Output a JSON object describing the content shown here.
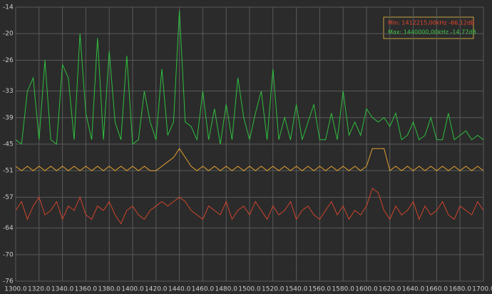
{
  "chart_data": {
    "type": "line",
    "annotations": [
      "Min: 1412215,00kHz -66,12dB",
      "Max: 1440000,00kHz -14,77dB"
    ],
    "annotation_colors": [
      "#e0452f",
      "#3ec54a"
    ],
    "x": [
      1300,
      1305,
      1310,
      1315,
      1320,
      1325,
      1330,
      1335,
      1340,
      1345,
      1350,
      1355,
      1360,
      1365,
      1370,
      1375,
      1380,
      1385,
      1390,
      1395,
      1400,
      1405,
      1410,
      1415,
      1420,
      1425,
      1430,
      1435,
      1440,
      1445,
      1450,
      1455,
      1460,
      1465,
      1470,
      1475,
      1480,
      1485,
      1490,
      1495,
      1500,
      1505,
      1510,
      1515,
      1520,
      1525,
      1530,
      1535,
      1540,
      1545,
      1550,
      1555,
      1560,
      1565,
      1570,
      1575,
      1580,
      1585,
      1590,
      1595,
      1600,
      1605,
      1610,
      1615,
      1620,
      1625,
      1630,
      1635,
      1640,
      1645,
      1650,
      1655,
      1660,
      1665,
      1670,
      1675,
      1680,
      1685,
      1690,
      1695,
      1700
    ],
    "series": [
      {
        "color": "#2fbf3f",
        "values": [
          -44,
          -45,
          -33,
          -30,
          -44,
          -26,
          -44,
          -45,
          -27,
          -30,
          -44,
          -20,
          -38,
          -44,
          -21,
          -44,
          -24,
          -40,
          -44,
          -25,
          -45,
          -44,
          -33,
          -40,
          -44,
          -28,
          -43,
          -40,
          -14.77,
          -40,
          -41,
          -44,
          -33,
          -44,
          -37,
          -45,
          -36,
          -44,
          -30,
          -39,
          -44,
          -38,
          -33,
          -44,
          -28,
          -44,
          -39,
          -44,
          -36,
          -44,
          -40,
          -36,
          -44,
          -44,
          -38,
          -44,
          -33,
          -43,
          -40,
          -43,
          -37,
          -39,
          -40,
          -39,
          -41,
          -38,
          -44,
          -43,
          -40,
          -44,
          -43,
          -39,
          -44,
          -44,
          -38,
          -44,
          -43,
          -42,
          -44,
          -43,
          -44
        ]
      },
      {
        "color": "#e0a030",
        "values": [
          -50,
          -51,
          -50,
          -51,
          -50,
          -51,
          -50,
          -51,
          -50,
          -51,
          -50,
          -51,
          -50,
          -51,
          -50,
          -51,
          -50,
          -51,
          -50,
          -51,
          -50,
          -51,
          -50,
          -51,
          -51,
          -50,
          -49,
          -48,
          -46,
          -48,
          -50,
          -51,
          -50,
          -51,
          -50,
          -51,
          -50,
          -51,
          -50,
          -51,
          -50,
          -51,
          -50,
          -51,
          -50,
          -51,
          -50,
          -51,
          -50,
          -51,
          -50,
          -51,
          -50,
          -51,
          -50,
          -51,
          -50,
          -51,
          -50,
          -51,
          -50,
          -46,
          -46,
          -46,
          -51,
          -50,
          -51,
          -50,
          -51,
          -50,
          -51,
          -50,
          -51,
          -50,
          -51,
          -50,
          -51,
          -50,
          -51,
          -50,
          -51
        ]
      },
      {
        "color": "#d0442c",
        "values": [
          -60,
          -58,
          -62,
          -59,
          -57,
          -61,
          -60,
          -58,
          -62,
          -59,
          -60,
          -57,
          -61,
          -62,
          -59,
          -60,
          -58,
          -61,
          -63,
          -60,
          -59,
          -61,
          -62,
          -60,
          -59,
          -58,
          -59,
          -58,
          -57,
          -58,
          -60,
          -61,
          -62,
          -59,
          -60,
          -61,
          -58,
          -62,
          -60,
          -59,
          -61,
          -58,
          -60,
          -62,
          -59,
          -61,
          -60,
          -58,
          -62,
          -60,
          -59,
          -61,
          -62,
          -60,
          -58,
          -61,
          -59,
          -62,
          -60,
          -61,
          -59,
          -55,
          -56,
          -60,
          -62,
          -59,
          -61,
          -60,
          -58,
          -62,
          -59,
          -61,
          -60,
          -58,
          -61,
          -62,
          -59,
          -60,
          -61,
          -58,
          -60
        ]
      }
    ],
    "xlim": [
      1300,
      1700
    ],
    "xticks": [
      {
        "value": 1300,
        "label": "1300.0"
      },
      {
        "value": 1320,
        "label": "1320.0"
      },
      {
        "value": 1340,
        "label": "1340.0"
      },
      {
        "value": 1360,
        "label": "1360.0"
      },
      {
        "value": 1380,
        "label": "1380.0"
      },
      {
        "value": 1400,
        "label": "1400.0"
      },
      {
        "value": 1420,
        "label": "1420.0"
      },
      {
        "value": 1440,
        "label": "1440.0"
      },
      {
        "value": 1460,
        "label": "1460.0"
      },
      {
        "value": 1480,
        "label": "1480.0"
      },
      {
        "value": 1500,
        "label": "1500.0"
      },
      {
        "value": 1520,
        "label": "1520.0"
      },
      {
        "value": 1540,
        "label": "1540.0"
      },
      {
        "value": 1560,
        "label": "1560.0"
      },
      {
        "value": 1580,
        "label": "1580.0"
      },
      {
        "value": 1600,
        "label": "1600.0"
      },
      {
        "value": 1620,
        "label": "1620.0"
      },
      {
        "value": 1640,
        "label": "1640.0"
      },
      {
        "value": 1660,
        "label": "1660.0"
      },
      {
        "value": 1680,
        "label": "1680.0"
      },
      {
        "value": 1700,
        "label": "1700.0"
      }
    ],
    "ylim": [
      -76,
      -14
    ],
    "yticks": [
      -14,
      -20,
      -26,
      -33,
      -39,
      -45,
      -51,
      -57,
      -64,
      -70,
      -76
    ],
    "grid": true
  }
}
